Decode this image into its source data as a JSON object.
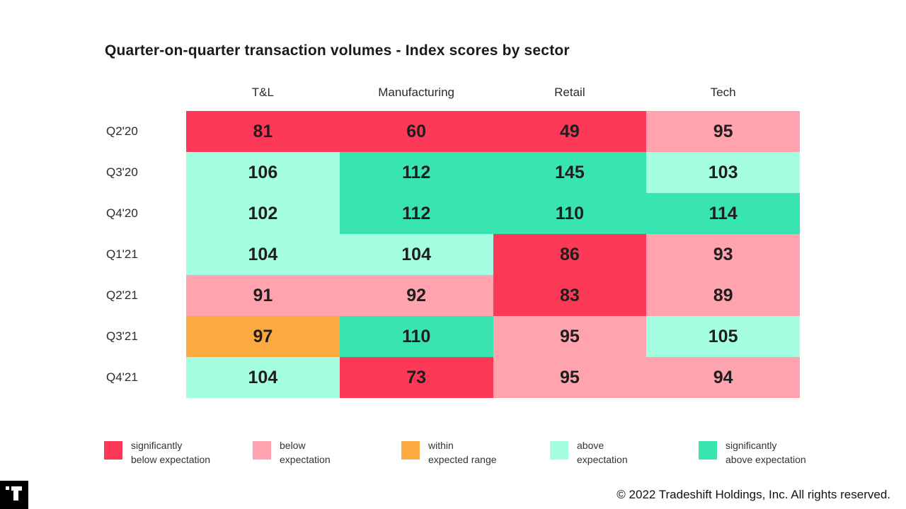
{
  "title": "Quarter-on-quarter transaction volumes - Index scores by sector",
  "chart_data": {
    "type": "heatmap",
    "title": "Quarter-on-quarter transaction volumes - Index scores by sector",
    "columns": [
      "T&L",
      "Manufacturing",
      "Retail",
      "Tech"
    ],
    "rows": [
      "Q2'20",
      "Q3'20",
      "Q4'20",
      "Q1'21",
      "Q2'21",
      "Q3'21",
      "Q4'21"
    ],
    "values": [
      [
        81,
        60,
        49,
        95
      ],
      [
        106,
        112,
        145,
        103
      ],
      [
        102,
        112,
        110,
        114
      ],
      [
        104,
        104,
        86,
        93
      ],
      [
        91,
        92,
        83,
        89
      ],
      [
        97,
        110,
        95,
        105
      ],
      [
        104,
        73,
        95,
        94
      ]
    ],
    "cell_categories": [
      [
        "sig_below",
        "sig_below",
        "sig_below",
        "below"
      ],
      [
        "above",
        "sig_above",
        "sig_above",
        "above"
      ],
      [
        "above",
        "sig_above",
        "sig_above",
        "sig_above"
      ],
      [
        "above",
        "above",
        "sig_below",
        "below"
      ],
      [
        "below",
        "below",
        "sig_below",
        "below"
      ],
      [
        "within",
        "sig_above",
        "below",
        "above"
      ],
      [
        "above",
        "sig_below",
        "below",
        "below"
      ]
    ],
    "palette": {
      "sig_below": "#FC3A58",
      "below": "#FFA3AE",
      "within": "#FAAA41",
      "above": "#A5FDE2",
      "sig_above": "#38E5B0"
    },
    "legend": [
      {
        "category": "sig_below",
        "label": "significantly\nbelow expectation"
      },
      {
        "category": "below",
        "label": "below\nexpectation"
      },
      {
        "category": "within",
        "label": "within\nexpected range"
      },
      {
        "category": "above",
        "label": "above\nexpectation"
      },
      {
        "category": "sig_above",
        "label": "significantly\nabove expectation"
      }
    ],
    "legend_position": "bottom",
    "grid": false
  },
  "footer": {
    "copyright": "© 2022 Tradeshift Holdings, Inc. All rights reserved."
  },
  "logo": {
    "name": "tradeshift-logo"
  }
}
